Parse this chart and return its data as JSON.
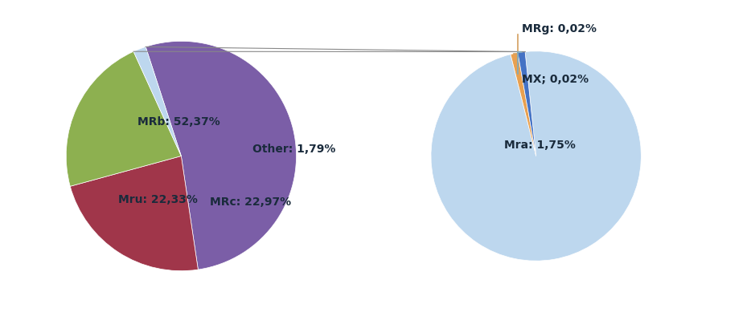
{
  "main_labels": [
    "MRb",
    "MRc",
    "Mru",
    "Other"
  ],
  "main_values": [
    52.37,
    22.97,
    22.33,
    1.79
  ],
  "main_colors": [
    "#7B5EA7",
    "#A0364A",
    "#8DB050",
    "#BDD7EE"
  ],
  "main_label_texts": [
    "MRb: 52,37%",
    "MRc: 22,97%",
    "Mru: 22,33%",
    "Other: 1,79%"
  ],
  "sub_labels": [
    "Mra",
    "MRg",
    "MX"
  ],
  "sub_values": [
    1.75,
    0.02,
    0.02
  ],
  "sub_colors": [
    "#BDD7EE",
    "#E8A050",
    "#4472C4"
  ],
  "sub_label_texts": [
    "Mra: 1,75%",
    "MRg: 0,02%",
    "MX; 0,02%"
  ],
  "background_color": "#FFFFFF",
  "font_size": 10,
  "font_color": "#1A2B3C",
  "figsize": [
    9.39,
    3.89
  ],
  "main_startangle": 108,
  "sub_startangle": 96,
  "connector_color": "#888888",
  "mrg_line_color": "#D4A060",
  "mx_line_color": "#7BAAC0"
}
